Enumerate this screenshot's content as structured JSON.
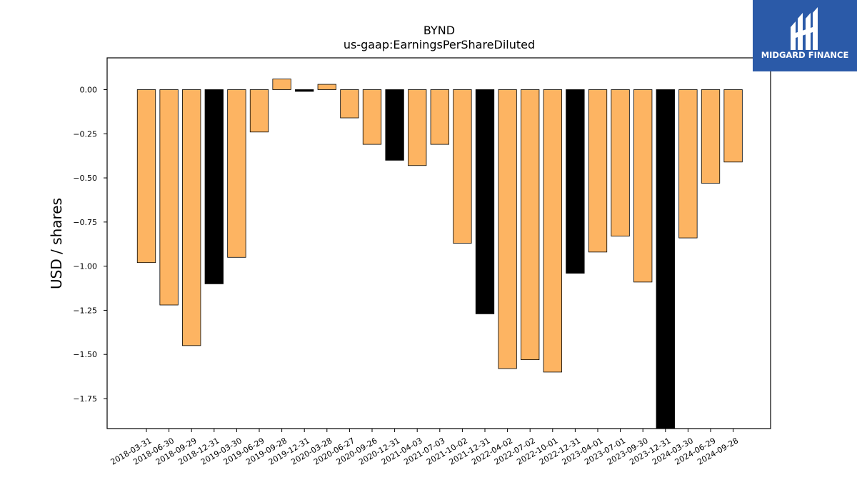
{
  "colors": {
    "background": "#ffffff",
    "bar_fill": "#fdb462",
    "bar_fill_q4": "#000000",
    "bar_stroke": "#000000",
    "brand_box": "#2b5aa8",
    "brand_text": "#ffffff"
  },
  "brand": {
    "name": "MIDGARD FINANCE",
    "logo_icon": "midgard-logo-icon"
  },
  "chart_data": {
    "type": "bar",
    "title": "BYND",
    "subtitle": "us-gaap:EarningsPerShareDiluted",
    "xlabel": "",
    "ylabel": "USD / shares",
    "ylim": [
      -1.92,
      0.18
    ],
    "yticks": [
      0.0,
      -0.25,
      -0.5,
      -0.75,
      -1.0,
      -1.25,
      -1.5,
      -1.75
    ],
    "ytick_labels": [
      "0.00",
      "−0.25",
      "−0.50",
      "−0.75",
      "−1.00",
      "−1.25",
      "−1.50",
      "−1.75"
    ],
    "grid": false,
    "legend": "none",
    "categories": [
      "2018-03-31",
      "2018-06-30",
      "2018-09-29",
      "2018-12-31",
      "2019-03-30",
      "2019-06-29",
      "2019-09-28",
      "2019-12-31",
      "2020-03-28",
      "2020-06-27",
      "2020-09-26",
      "2020-12-31",
      "2021-04-03",
      "2021-07-03",
      "2021-10-02",
      "2021-12-31",
      "2022-04-02",
      "2022-07-02",
      "2022-10-01",
      "2022-12-31",
      "2023-04-01",
      "2023-07-01",
      "2023-09-30",
      "2023-12-31",
      "2024-03-30",
      "2024-06-29",
      "2024-09-28"
    ],
    "values": [
      -0.98,
      -1.22,
      -1.45,
      -1.1,
      -0.95,
      -0.24,
      0.06,
      -0.01,
      0.03,
      -0.16,
      -0.31,
      -0.4,
      -0.43,
      -0.31,
      -0.87,
      -1.27,
      -1.58,
      -1.53,
      -1.6,
      -1.04,
      -0.92,
      -0.83,
      -1.09,
      -1.92,
      -0.84,
      -0.53,
      -0.41
    ],
    "highlight": [
      false,
      false,
      false,
      true,
      false,
      false,
      false,
      true,
      false,
      false,
      false,
      true,
      false,
      false,
      false,
      true,
      false,
      false,
      false,
      true,
      false,
      false,
      false,
      true,
      false,
      false,
      false
    ]
  }
}
